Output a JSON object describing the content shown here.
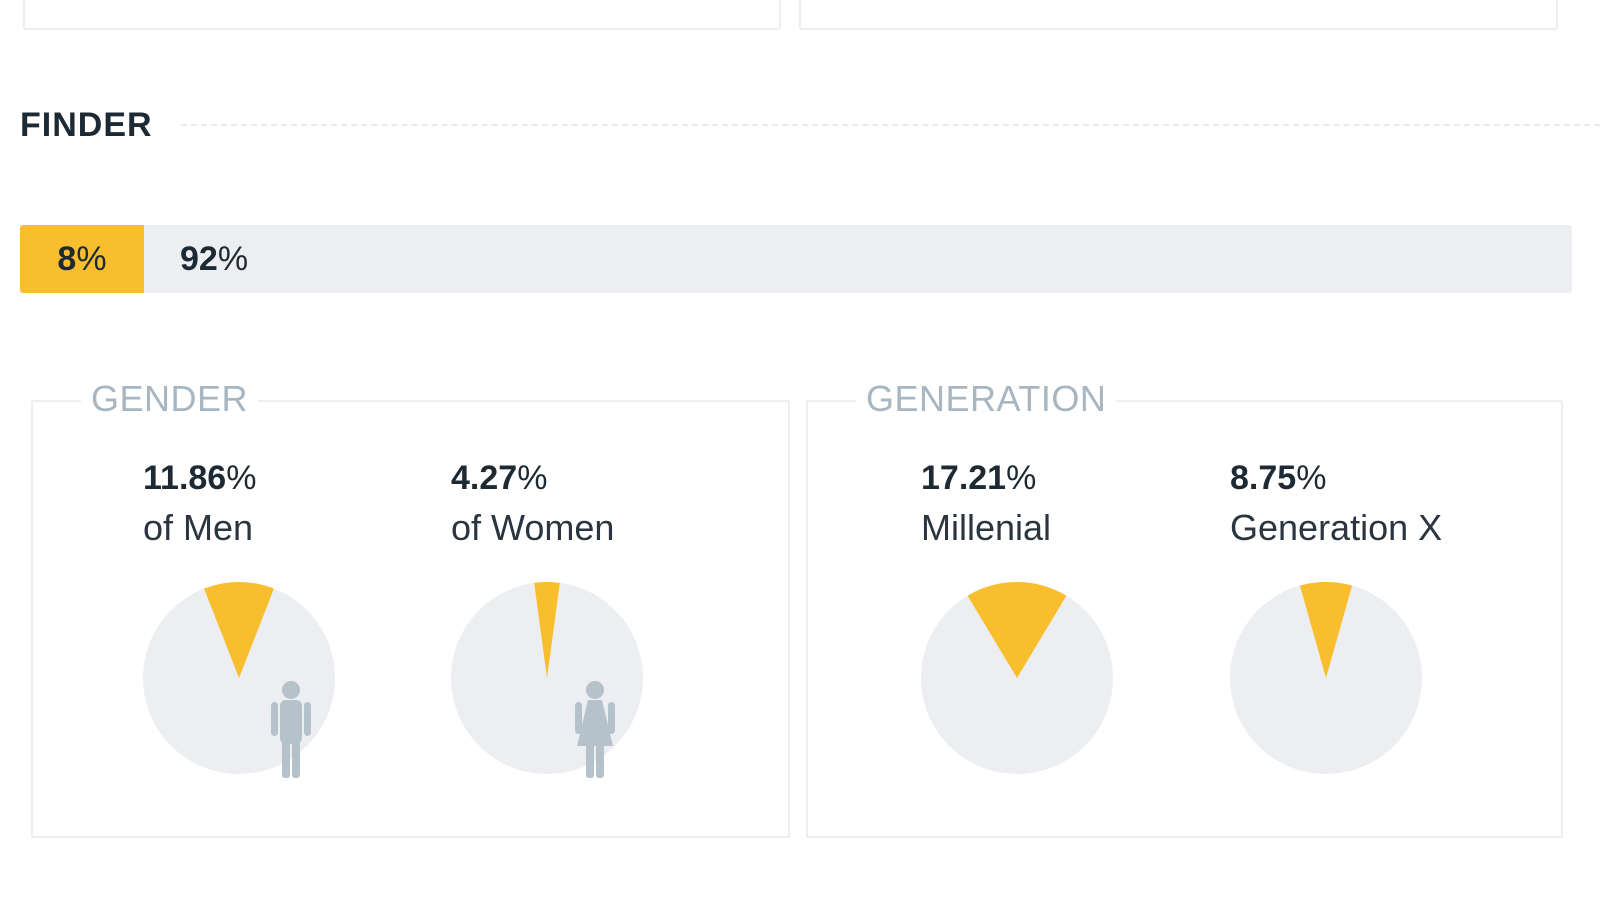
{
  "section": {
    "title": "FINDER"
  },
  "share_bar": {
    "yes": {
      "number": "8",
      "unit": "%"
    },
    "no": {
      "number": "92",
      "unit": "%"
    },
    "yes_fraction": 0.08
  },
  "groups": [
    {
      "legend": "GENDER",
      "stats": [
        {
          "number": "11.86",
          "unit": "%",
          "label": "of Men",
          "fraction": 0.1186,
          "icon": "man-icon"
        },
        {
          "number": "4.27",
          "unit": "%",
          "label": "of Women",
          "fraction": 0.0427,
          "icon": "woman-icon"
        }
      ]
    },
    {
      "legend": "GENERATION",
      "stats": [
        {
          "number": "17.21",
          "unit": "%",
          "label": "Millenial",
          "fraction": 0.1721
        },
        {
          "number": "8.75",
          "unit": "%",
          "label": "Generation X",
          "fraction": 0.0875
        }
      ]
    }
  ],
  "colors": {
    "accent": "#f9be2d",
    "pie_base": "#eceef1",
    "icon": "#b5c2cb",
    "legend": "#a7b6c1"
  }
}
